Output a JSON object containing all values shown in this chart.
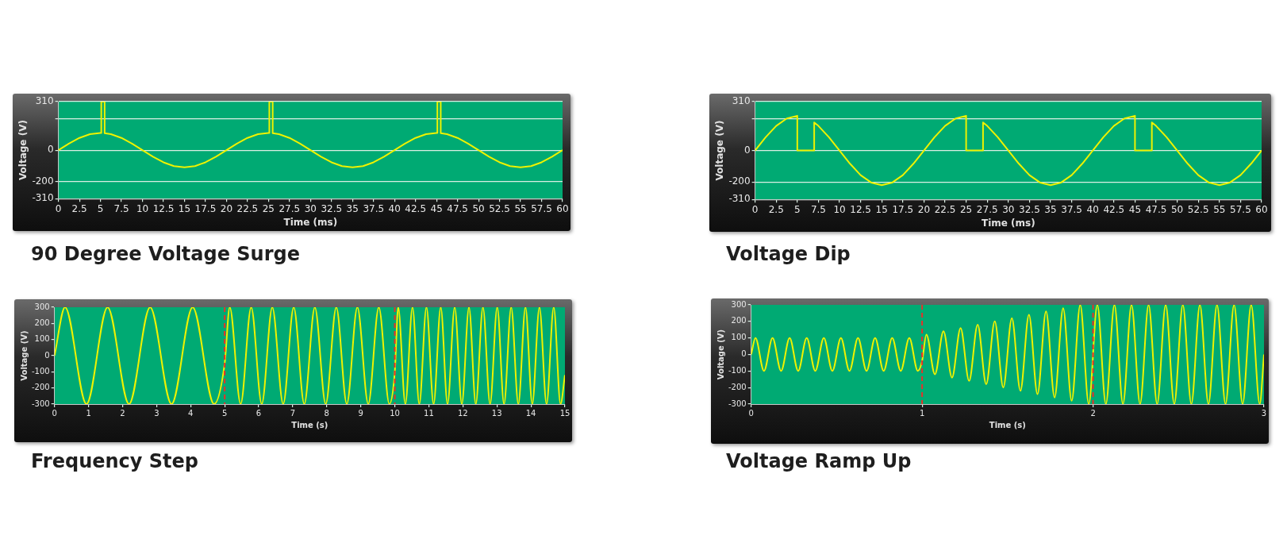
{
  "chart_data": [
    {
      "type": "line",
      "title": "90 Degree Voltage Surge",
      "xlabel": "Time (ms)",
      "ylabel": "Voltage (V)",
      "marker": "none",
      "grid": "y",
      "x": [
        0,
        1.25,
        2.5,
        3.75,
        5,
        5.1,
        5.1,
        5.5,
        5.5,
        6.25,
        7.5,
        8.75,
        10,
        11.25,
        12.5,
        13.75,
        15,
        16.25,
        17.5,
        18.75,
        20,
        21.25,
        22.5,
        23.75,
        25,
        25.1,
        25.1,
        25.5,
        25.5,
        26.25,
        27.5,
        28.75,
        30,
        31.25,
        32.5,
        33.75,
        35,
        36.25,
        37.5,
        38.75,
        40,
        41.25,
        42.5,
        43.75,
        45,
        45.1,
        45.1,
        45.5,
        45.5,
        46.25,
        47.5,
        48.75,
        50,
        51.25,
        52.5,
        53.75,
        55,
        56.25,
        57.5,
        58.75,
        60
      ],
      "series": [
        {
          "color": "#eef200",
          "values": [
            0,
            42,
            78,
            102,
            110,
            110,
            310,
            310,
            108,
            102,
            78,
            42,
            0,
            -42,
            -78,
            -102,
            -110,
            -102,
            -78,
            -42,
            0,
            42,
            78,
            102,
            110,
            110,
            310,
            310,
            108,
            102,
            78,
            42,
            0,
            -42,
            -78,
            -102,
            -110,
            -102,
            -78,
            -42,
            0,
            42,
            78,
            102,
            110,
            110,
            310,
            310,
            108,
            102,
            78,
            42,
            0,
            -42,
            -78,
            -102,
            -110,
            -102,
            -78,
            -42,
            0
          ]
        }
      ],
      "xlim": [
        0,
        60
      ],
      "xticks": [
        0,
        2.5,
        5,
        7.5,
        10,
        12.5,
        15,
        17.5,
        20,
        22.5,
        25,
        27.5,
        30,
        32.5,
        35,
        37.5,
        40,
        42.5,
        45,
        47.5,
        50,
        52.5,
        55,
        57.5,
        60
      ],
      "ylim": [
        -310,
        310
      ],
      "yticks": [
        -310,
        -200,
        0,
        {
          "value": 200,
          "label": null
        },
        310
      ]
    },
    {
      "type": "line",
      "title": "Voltage Dip",
      "xlabel": "Time (ms)",
      "ylabel": "Voltage (V)",
      "marker": "none",
      "grid": "y",
      "x": [
        0,
        1.25,
        2.5,
        3.75,
        5,
        5,
        7,
        7,
        7.5,
        8.75,
        10,
        11.25,
        12.5,
        13.75,
        15,
        16.25,
        17.5,
        18.75,
        20,
        21.25,
        22.5,
        23.75,
        25,
        25,
        27,
        27,
        27.5,
        28.75,
        30,
        31.25,
        32.5,
        33.75,
        35,
        36.25,
        37.5,
        38.75,
        40,
        41.25,
        42.5,
        43.75,
        45,
        45,
        47,
        47,
        47.5,
        48.75,
        50,
        51.25,
        52.5,
        53.75,
        55,
        56.25,
        57.5,
        58.75,
        60
      ],
      "series": [
        {
          "color": "#eef200",
          "values": [
            0,
            84,
            156,
            203,
            220,
            0,
            0,
            178,
            156,
            84,
            0,
            -84,
            -156,
            -203,
            -220,
            -203,
            -156,
            -84,
            0,
            84,
            156,
            203,
            220,
            0,
            0,
            178,
            156,
            84,
            0,
            -84,
            -156,
            -203,
            -220,
            -203,
            -156,
            -84,
            0,
            84,
            156,
            203,
            220,
            0,
            0,
            178,
            156,
            84,
            0,
            -84,
            -156,
            -203,
            -220,
            -203,
            -156,
            -84,
            0
          ]
        }
      ],
      "xlim": [
        0,
        60
      ],
      "xticks": [
        0,
        2.5,
        5,
        7.5,
        10,
        12.5,
        15,
        17.5,
        20,
        22.5,
        25,
        27.5,
        30,
        32.5,
        35,
        37.5,
        40,
        42.5,
        45,
        47.5,
        50,
        52.5,
        55,
        57.5,
        60
      ],
      "ylim": [
        -310,
        310
      ],
      "yticks": [
        -310,
        -200,
        0,
        {
          "value": 200,
          "label": null
        },
        310
      ]
    },
    {
      "type": "line",
      "title": "Frequency Step",
      "xlabel": "Time (s)",
      "ylabel": "Voltage (V)",
      "marker": "none",
      "grid": false,
      "x": [
        0,
        0.31,
        0.94,
        1.56,
        2.19,
        2.81,
        3.44,
        4.06,
        4.69,
        5,
        5.15,
        5.47,
        5.78,
        6.09,
        6.4,
        6.72,
        7.03,
        7.34,
        7.65,
        7.97,
        8.28,
        8.59,
        8.9,
        9.22,
        9.53,
        9.84,
        10,
        10.1,
        10.31,
        10.52,
        10.72,
        10.93,
        11.14,
        11.35,
        11.55,
        11.76,
        11.97,
        12.18,
        12.38,
        12.59,
        12.8,
        13.01,
        13.21,
        13.42,
        13.63,
        13.84,
        14.04,
        14.25,
        14.46,
        14.67,
        14.87,
        15
      ],
      "series": [
        {
          "color": "#eef200",
          "values": [
            0,
            300,
            -300,
            300,
            -300,
            300,
            -300,
            300,
            -300,
            -50,
            300,
            -300,
            300,
            -300,
            300,
            -300,
            300,
            -300,
            300,
            -300,
            300,
            -300,
            300,
            -300,
            300,
            -300,
            -100,
            300,
            -300,
            300,
            -300,
            300,
            -300,
            300,
            -300,
            300,
            -300,
            300,
            -300,
            300,
            -300,
            300,
            -300,
            300,
            -300,
            300,
            -300,
            300,
            -300,
            300,
            -300,
            -120
          ]
        }
      ],
      "xlim": [
        0,
        15
      ],
      "xticks": [
        0,
        1,
        2,
        3,
        4,
        5,
        6,
        7,
        8,
        9,
        10,
        11,
        12,
        13,
        14,
        15
      ],
      "ylim": [
        -300,
        300
      ],
      "yticks": [
        -300,
        -200,
        -100,
        0,
        100,
        200,
        300
      ],
      "ref_lines": [
        {
          "axis": "x",
          "value": 5,
          "color": "#e8302a",
          "line_style": "dashed"
        },
        {
          "axis": "x",
          "value": 10,
          "color": "#e8302a",
          "line_style": "dashed"
        }
      ]
    },
    {
      "type": "line",
      "title": "Voltage Ramp Up",
      "xlabel": "Time (s)",
      "ylabel": "Voltage (V)",
      "marker": "none",
      "grid": false,
      "x": [
        0,
        0.025,
        0.075,
        0.125,
        0.175,
        0.225,
        0.275,
        0.325,
        0.375,
        0.425,
        0.475,
        0.525,
        0.575,
        0.625,
        0.675,
        0.725,
        0.775,
        0.825,
        0.875,
        0.925,
        0.975,
        1,
        1.025,
        1.075,
        1.125,
        1.175,
        1.225,
        1.275,
        1.325,
        1.375,
        1.425,
        1.475,
        1.525,
        1.575,
        1.625,
        1.675,
        1.725,
        1.775,
        1.825,
        1.875,
        1.925,
        1.975,
        2.025,
        2.075,
        2.125,
        2.175,
        2.225,
        2.275,
        2.325,
        2.375,
        2.425,
        2.475,
        2.525,
        2.575,
        2.625,
        2.675,
        2.725,
        2.775,
        2.825,
        2.875,
        2.925,
        2.975,
        3
      ],
      "series": [
        {
          "color": "#eef200",
          "values": [
            0,
            100,
            -100,
            100,
            -100,
            100,
            -100,
            100,
            -100,
            100,
            -100,
            100,
            -100,
            100,
            -100,
            100,
            -100,
            100,
            -100,
            100,
            -100,
            -40,
            120,
            -120,
            140,
            -140,
            160,
            -160,
            180,
            -180,
            200,
            -200,
            220,
            -220,
            240,
            -240,
            260,
            -260,
            280,
            -280,
            300,
            -300,
            300,
            -300,
            300,
            -300,
            300,
            -300,
            300,
            -300,
            300,
            -300,
            300,
            -300,
            300,
            -300,
            300,
            -300,
            300,
            -300,
            300,
            -300,
            0
          ]
        }
      ],
      "xlim": [
        0,
        3
      ],
      "xticks": [
        0,
        1,
        2,
        3
      ],
      "ylim": [
        -300,
        300
      ],
      "yticks": [
        -300,
        -200,
        -100,
        0,
        100,
        200,
        300
      ],
      "ref_lines": [
        {
          "axis": "x",
          "value": 1,
          "color": "#e8302a",
          "line_style": "dashed"
        },
        {
          "axis": "x",
          "value": 2,
          "color": "#e8302a",
          "line_style": "dashed"
        }
      ]
    }
  ]
}
